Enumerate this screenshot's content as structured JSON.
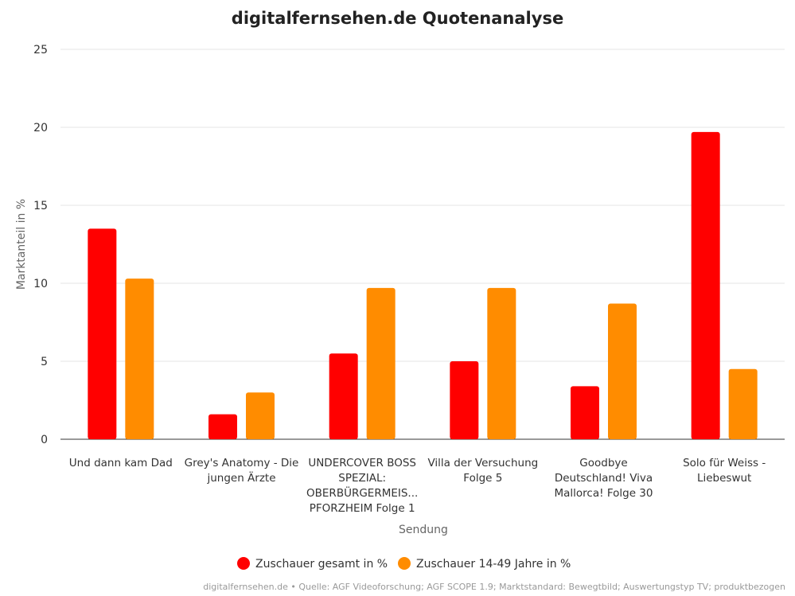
{
  "chart_data": {
    "type": "bar",
    "title": "digitalfernsehen.de Quotenanalyse",
    "xlabel": "Sendung",
    "ylabel": "Marktanteil in %",
    "ylim": [
      0,
      25
    ],
    "yticks": [
      0,
      5,
      10,
      15,
      20,
      25
    ],
    "grid": true,
    "legend_position": "bottom",
    "categories": [
      [
        "Und dann kam Dad"
      ],
      [
        "Grey's Anatomy - Die",
        "jungen Ärzte"
      ],
      [
        "UNDERCOVER BOSS",
        "SPEZIAL:",
        "OBERBÜRGERMEIS...",
        "PFORZHEIM Folge 1"
      ],
      [
        "Villa der Versuchung",
        "Folge 5"
      ],
      [
        "Goodbye",
        "Deutschland! Viva",
        "Mallorca! Folge 30"
      ],
      [
        "Solo für Weiss -",
        "Liebeswut"
      ]
    ],
    "series": [
      {
        "name": "Zuschauer gesamt in %",
        "color": "#ff0000",
        "values": [
          13.5,
          1.6,
          5.5,
          5.0,
          3.4,
          19.7
        ]
      },
      {
        "name": "Zuschauer 14-49 Jahre in %",
        "color": "#ff8c00",
        "values": [
          10.3,
          3.0,
          9.7,
          9.7,
          8.7,
          4.5
        ]
      }
    ],
    "credit": "digitalfernsehen.de • Quelle: AGF Videoforschung; AGF SCOPE 1.9; Marktstandard: Bewegtbild; Auswertungstyp TV; produktbezogen"
  }
}
